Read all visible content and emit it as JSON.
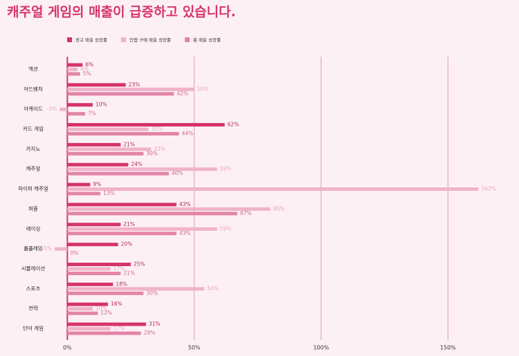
{
  "chart_data": {
    "type": "bar",
    "orientation": "horizontal",
    "title": "캐주얼 게임의 매출이 급증하고 있습니다.",
    "categories": [
      "액션",
      "어드벤처",
      "아케이드",
      "카드 게임",
      "카지노",
      "캐주얼",
      "하이퍼 캐주얼",
      "퍼즐",
      "레이싱",
      "롤플레잉",
      "시뮬레이션",
      "스포츠",
      "전략",
      "단어 게임"
    ],
    "series": [
      {
        "name": "광고 매출 성장률",
        "color": "#d6336c",
        "label_color": "#b02a5a",
        "values": [
          6,
          23,
          10,
          62,
          21,
          24,
          9,
          43,
          21,
          20,
          25,
          18,
          16,
          31
        ],
        "value_labels": [
          "6%",
          "23%",
          "10%",
          "62%",
          "21%",
          "24%",
          "9%",
          "43%",
          "21%",
          "20%",
          "25%",
          "18%",
          "16%",
          "31%"
        ]
      },
      {
        "name": "인앱 구매 매출 성장률",
        "color": "#f0b3c8",
        "label_color": "#eaa3bd",
        "values": [
          4,
          50,
          -3,
          32,
          33,
          59,
          162,
          80,
          59,
          -5,
          17,
          54,
          10,
          17
        ],
        "value_labels": [
          "4%",
          "50%",
          "-3%",
          "32%",
          "33%",
          "59%",
          "162%",
          "80%",
          "59%",
          "-5%",
          "17%",
          "54%",
          "10%",
          "17%"
        ]
      },
      {
        "name": "총 매출 성장률",
        "color": "#e384a8",
        "label_color": "#d0668f",
        "values": [
          5,
          42,
          7,
          44,
          30,
          40,
          13,
          67,
          43,
          0,
          21,
          30,
          12,
          29
        ],
        "value_labels": [
          "5%",
          "42%",
          "7%",
          "44%",
          "30%",
          "40%",
          "13%",
          "67%",
          "43%",
          "0%",
          "21%",
          "30%",
          "12%",
          "29%"
        ]
      }
    ],
    "xlim": [
      -5,
      175
    ],
    "xticks": [
      {
        "value": 0,
        "label": "0%"
      },
      {
        "value": 50,
        "label": "50%"
      },
      {
        "value": 100,
        "label": "100%"
      },
      {
        "value": 150,
        "label": "150%"
      }
    ],
    "grid": true
  }
}
